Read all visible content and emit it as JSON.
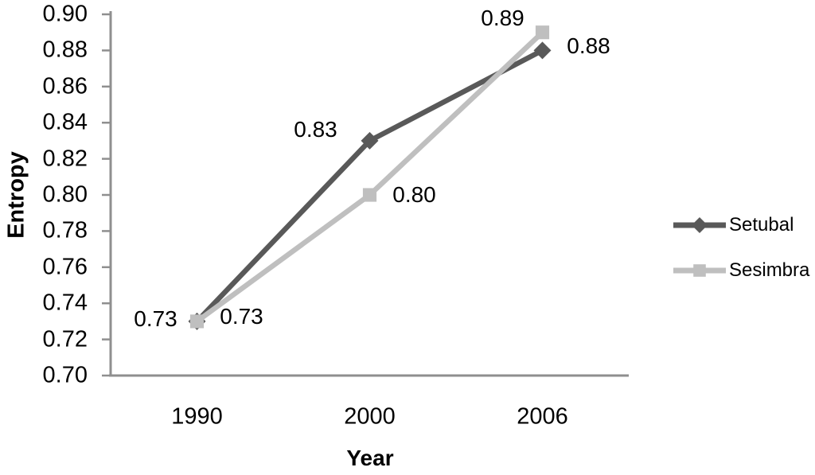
{
  "chart_data": {
    "type": "line",
    "title": "",
    "xlabel": "Year",
    "ylabel": "Entropy",
    "categories": [
      "1990",
      "2000",
      "2006"
    ],
    "series": [
      {
        "name": "Setubal",
        "color": "#595959",
        "marker": "diamond",
        "values": [
          0.73,
          0.83,
          0.88
        ],
        "point_labels": [
          "0.73",
          "0.83",
          "0.88"
        ],
        "label_offsets": [
          [
            -52,
            -3
          ],
          [
            -68,
            -14
          ],
          [
            58,
            -5
          ]
        ]
      },
      {
        "name": "Sesimbra",
        "color": "#BFBFBF",
        "marker": "square",
        "values": [
          0.73,
          0.8,
          0.89
        ],
        "point_labels": [
          "0.73",
          "0.80",
          "0.89"
        ],
        "label_offsets": [
          [
            56,
            -6
          ],
          [
            56,
            0
          ],
          [
            -50,
            -18
          ]
        ]
      }
    ],
    "y_axis": {
      "min": 0.7,
      "max": 0.9,
      "step": 0.02,
      "tick_labels": [
        "0.90",
        "0.88",
        "0.86",
        "0.84",
        "0.82",
        "0.80",
        "0.78",
        "0.76",
        "0.74",
        "0.72",
        "0.70"
      ]
    },
    "x_axis": {
      "tick_labels": [
        "1990",
        "2000",
        "2006"
      ]
    },
    "legend": {
      "position": "right",
      "entries": [
        {
          "label": "Setubal"
        },
        {
          "label": "Sesimbra"
        }
      ]
    },
    "grid": false,
    "colors": {
      "axis": "#8F8F8F",
      "text": "#000000",
      "background": "#FFFFFF"
    }
  }
}
